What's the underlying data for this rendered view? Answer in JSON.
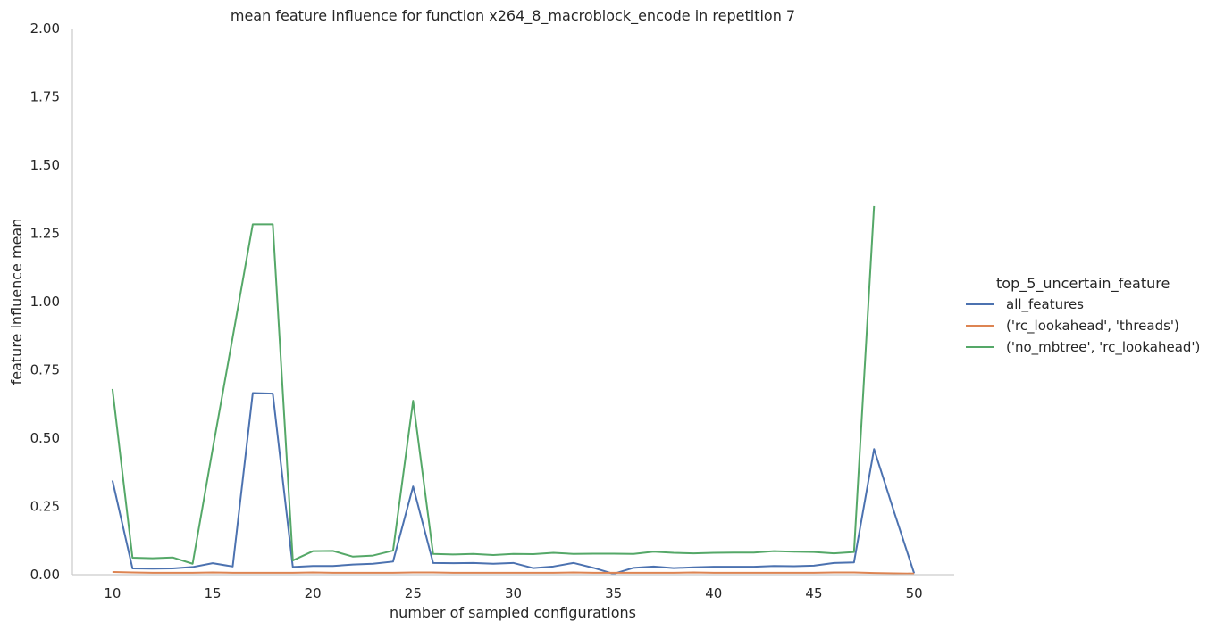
{
  "chart_data": {
    "type": "line",
    "title": "mean feature influence for function x264_8_macroblock_encode in repetition 7",
    "xlabel": "number of sampled configurations",
    "ylabel": "feature influence mean",
    "xlim": [
      8,
      52
    ],
    "ylim": [
      0,
      2.0
    ],
    "xticks": [
      10,
      15,
      20,
      25,
      30,
      35,
      40,
      45,
      50
    ],
    "yticks": [
      "0.00",
      "0.25",
      "0.50",
      "0.75",
      "1.00",
      "1.25",
      "1.50",
      "1.75",
      "2.00"
    ],
    "grid": false,
    "legend": {
      "title": "top_5_uncertain_feature",
      "placement": "right"
    },
    "x": [
      10,
      11,
      12,
      13,
      14,
      15,
      16,
      17,
      18,
      19,
      20,
      21,
      22,
      23,
      24,
      25,
      26,
      27,
      28,
      29,
      30,
      31,
      32,
      33,
      34,
      35,
      36,
      37,
      38,
      39,
      40,
      41,
      42,
      43,
      44,
      45,
      46,
      47,
      48,
      49,
      50
    ],
    "series": [
      {
        "name": "all_features",
        "color": "#4c72b0",
        "values": [
          0.345,
          0.023,
          0.022,
          0.023,
          0.028,
          0.042,
          0.03,
          0.665,
          0.663,
          0.028,
          0.032,
          0.032,
          0.037,
          0.04,
          0.048,
          0.323,
          0.043,
          0.042,
          0.043,
          0.04,
          0.043,
          0.024,
          0.03,
          0.043,
          0.025,
          0.003,
          0.025,
          0.03,
          0.024,
          0.027,
          0.029,
          0.029,
          0.029,
          0.032,
          0.031,
          0.033,
          0.043,
          0.045,
          0.46,
          0.23,
          0.005
        ]
      },
      {
        "name": "('rc_lookahead', 'threads')",
        "color": "#dd8452",
        "values": [
          0.01,
          0.008,
          0.007,
          0.007,
          0.007,
          0.008,
          0.007,
          0.007,
          0.007,
          0.007,
          0.008,
          0.007,
          0.007,
          0.007,
          0.007,
          0.008,
          0.008,
          0.007,
          0.007,
          0.007,
          0.007,
          0.007,
          0.007,
          0.008,
          0.007,
          0.007,
          0.007,
          0.007,
          0.007,
          0.008,
          0.007,
          0.007,
          0.007,
          0.007,
          0.007,
          0.007,
          0.008,
          0.008,
          0.006,
          0.005,
          0.004
        ]
      },
      {
        "name": "('no_mbtree', 'rc_lookahead')",
        "color": "#55a868",
        "values": [
          0.68,
          0.062,
          0.06,
          0.063,
          0.04,
          0.46,
          0.87,
          1.283,
          1.283,
          0.052,
          0.086,
          0.087,
          0.066,
          0.07,
          0.088,
          0.637,
          0.076,
          0.074,
          0.076,
          0.072,
          0.076,
          0.075,
          0.08,
          0.076,
          0.077,
          0.077,
          0.076,
          0.084,
          0.08,
          0.078,
          0.08,
          0.081,
          0.081,
          0.086,
          0.084,
          0.083,
          0.078,
          0.083,
          1.35,
          null,
          null
        ]
      }
    ]
  }
}
